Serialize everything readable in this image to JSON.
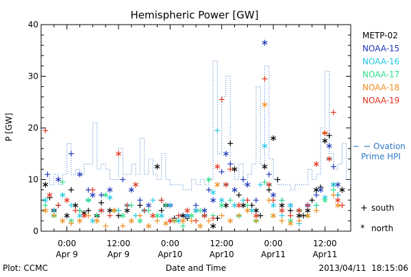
{
  "chart_data": {
    "type": "scatter",
    "title": "Hemispheric Power [GW]",
    "xlabel": "Date and Time",
    "ylabel": "P [GW]",
    "ylim": [
      0,
      40
    ],
    "y_ticks": [
      "0",
      "10",
      "20",
      "30",
      "40"
    ],
    "xlim_hours": [
      -6,
      66
    ],
    "x_ticks": [
      {
        "hour": 0,
        "time": "0:00",
        "date": "Apr 9"
      },
      {
        "hour": 12,
        "time": "12:00",
        "date": "Apr 9"
      },
      {
        "hour": 24,
        "time": "0:00",
        "date": "Apr10"
      },
      {
        "hour": 36,
        "time": "12:00",
        "date": "Apr10"
      },
      {
        "hour": 48,
        "time": "0:00",
        "date": "Apr11"
      },
      {
        "hour": 60,
        "time": "12:00",
        "date": "Apr11"
      }
    ],
    "grid": false,
    "legend_position": "right",
    "series": [
      {
        "name": "METP-02",
        "color": "#000000",
        "points": [
          [
            -5,
            9
          ],
          [
            -4,
            6.5
          ],
          [
            -3,
            4
          ],
          [
            -2,
            5
          ],
          [
            0,
            3
          ],
          [
            1,
            8
          ],
          [
            2,
            5
          ],
          [
            3,
            4
          ],
          [
            4,
            3.5
          ],
          [
            5,
            4
          ],
          [
            7,
            3
          ],
          [
            8,
            5.5
          ],
          [
            10,
            4
          ],
          [
            12,
            3
          ],
          [
            14,
            4
          ],
          [
            17,
            5
          ],
          [
            21,
            12.5
          ],
          [
            22,
            4
          ],
          [
            23,
            5
          ],
          [
            25,
            2.5
          ],
          [
            27,
            3
          ],
          [
            28,
            2.5
          ],
          [
            30,
            4
          ],
          [
            32,
            3
          ],
          [
            34,
            1
          ],
          [
            35,
            2.5
          ],
          [
            37,
            5
          ],
          [
            38,
            17
          ],
          [
            39,
            12
          ],
          [
            40,
            7
          ],
          [
            41,
            5
          ],
          [
            43,
            5
          ],
          [
            44,
            4
          ],
          [
            45,
            3
          ],
          [
            46,
            12.5
          ],
          [
            47,
            8
          ],
          [
            48,
            18
          ],
          [
            49,
            10
          ],
          [
            50,
            5
          ],
          [
            52,
            4
          ],
          [
            54,
            3
          ],
          [
            55,
            3
          ],
          [
            56,
            4
          ],
          [
            57,
            6
          ],
          [
            58,
            8
          ],
          [
            59,
            8.5
          ],
          [
            60,
            17.5
          ],
          [
            61,
            18.5
          ],
          [
            62,
            9
          ],
          [
            63,
            7
          ],
          [
            64,
            8
          ]
        ]
      },
      {
        "name": "NOAA-15",
        "color": "#1f37b8",
        "points": [
          [
            -4.5,
            11
          ],
          [
            -2,
            10
          ],
          [
            1,
            15
          ],
          [
            3,
            11
          ],
          [
            5,
            8
          ],
          [
            6,
            7
          ],
          [
            8,
            7
          ],
          [
            10,
            8
          ],
          [
            13,
            10
          ],
          [
            15,
            8
          ],
          [
            17,
            6
          ],
          [
            19,
            5
          ],
          [
            22,
            6
          ],
          [
            24,
            5
          ],
          [
            26,
            3
          ],
          [
            28,
            3
          ],
          [
            30,
            5
          ],
          [
            32,
            4
          ],
          [
            33,
            8
          ],
          [
            34,
            6
          ],
          [
            36,
            11.5
          ],
          [
            37,
            15
          ],
          [
            38,
            13
          ],
          [
            39,
            8
          ],
          [
            41,
            10
          ],
          [
            42,
            9
          ],
          [
            44,
            6
          ],
          [
            46,
            36.5
          ],
          [
            47,
            11
          ],
          [
            48,
            7
          ],
          [
            50,
            6
          ],
          [
            52,
            5
          ],
          [
            54,
            4
          ],
          [
            56,
            5
          ],
          [
            58,
            7
          ],
          [
            59,
            8
          ],
          [
            60,
            19
          ],
          [
            61,
            16.5
          ],
          [
            62,
            12.5
          ],
          [
            63,
            9
          ]
        ]
      },
      {
        "name": "NOAA-16",
        "color": "#22c8e6",
        "points": [
          [
            -5,
            6
          ],
          [
            -3,
            4
          ],
          [
            -1,
            7
          ],
          [
            1,
            5
          ],
          [
            3,
            3
          ],
          [
            5,
            6
          ],
          [
            6,
            2
          ],
          [
            8,
            4
          ],
          [
            10,
            6.5
          ],
          [
            12,
            4
          ],
          [
            14,
            5
          ],
          [
            16,
            3
          ],
          [
            18,
            4
          ],
          [
            20,
            6
          ],
          [
            22,
            3
          ],
          [
            24,
            5
          ],
          [
            26,
            2
          ],
          [
            28,
            3
          ],
          [
            30,
            4
          ],
          [
            32,
            3
          ],
          [
            34,
            7.5
          ],
          [
            35,
            19.5
          ],
          [
            36,
            6
          ],
          [
            37,
            9
          ],
          [
            39,
            5
          ],
          [
            41,
            6
          ],
          [
            43,
            4
          ],
          [
            45,
            9
          ],
          [
            46,
            16.5
          ],
          [
            47,
            9
          ],
          [
            48,
            5
          ],
          [
            50,
            3
          ],
          [
            52,
            5
          ],
          [
            54,
            1.5
          ],
          [
            56,
            3
          ],
          [
            58,
            5
          ],
          [
            60,
            6.5
          ],
          [
            61,
            14
          ],
          [
            62,
            9
          ],
          [
            63,
            7
          ]
        ]
      },
      {
        "name": "NOAA-17",
        "color": "#2ee08a",
        "points": [
          [
            -5,
            5
          ],
          [
            -3,
            3
          ],
          [
            -1,
            9.5
          ],
          [
            1,
            2
          ],
          [
            3,
            4
          ],
          [
            5,
            6
          ],
          [
            7,
            3
          ],
          [
            9,
            7
          ],
          [
            11,
            4
          ],
          [
            13,
            3
          ],
          [
            15,
            5
          ],
          [
            17,
            2
          ],
          [
            19,
            4
          ],
          [
            21,
            3
          ],
          [
            23,
            5
          ],
          [
            25,
            2
          ],
          [
            27,
            1
          ],
          [
            29,
            3
          ],
          [
            31,
            4
          ],
          [
            33,
            10
          ],
          [
            34,
            3
          ],
          [
            36,
            5
          ],
          [
            38,
            6
          ],
          [
            40,
            3
          ],
          [
            42,
            5
          ],
          [
            44,
            2
          ],
          [
            46,
            9.5
          ],
          [
            48,
            3
          ],
          [
            50,
            6
          ],
          [
            52,
            2
          ],
          [
            54,
            4
          ],
          [
            56,
            3
          ],
          [
            58,
            5
          ],
          [
            60,
            6
          ],
          [
            62,
            8
          ]
        ]
      },
      {
        "name": "NOAA-18",
        "color": "#f08c1c",
        "points": [
          [
            -5,
            4
          ],
          [
            -3,
            3
          ],
          [
            -1,
            2
          ],
          [
            1,
            1.5
          ],
          [
            3,
            2
          ],
          [
            5,
            3
          ],
          [
            7,
            2
          ],
          [
            9,
            1
          ],
          [
            11,
            4
          ],
          [
            13,
            1
          ],
          [
            15,
            2
          ],
          [
            17,
            3
          ],
          [
            19,
            1
          ],
          [
            21,
            2
          ],
          [
            23,
            1.5
          ],
          [
            25,
            2
          ],
          [
            27,
            2
          ],
          [
            29,
            2
          ],
          [
            31,
            1
          ],
          [
            33,
            2
          ],
          [
            35,
            9
          ],
          [
            36,
            3
          ],
          [
            38,
            2
          ],
          [
            40,
            3
          ],
          [
            42,
            4
          ],
          [
            44,
            2
          ],
          [
            46,
            24.5
          ],
          [
            47,
            6
          ],
          [
            48,
            3
          ],
          [
            50,
            2
          ],
          [
            52,
            1.5
          ],
          [
            54,
            2
          ],
          [
            56,
            3
          ],
          [
            58,
            4
          ],
          [
            60,
            19
          ],
          [
            62,
            7
          ],
          [
            63,
            5
          ]
        ]
      },
      {
        "name": "NOAA-19",
        "color": "#e2321e",
        "points": [
          [
            -5,
            19.5
          ],
          [
            -4,
            7
          ],
          [
            -2,
            5
          ],
          [
            0,
            6
          ],
          [
            2,
            4
          ],
          [
            4,
            3
          ],
          [
            6,
            8
          ],
          [
            8,
            4
          ],
          [
            10,
            3
          ],
          [
            12,
            15
          ],
          [
            14,
            5
          ],
          [
            16,
            9
          ],
          [
            18,
            4
          ],
          [
            20,
            3
          ],
          [
            22,
            6
          ],
          [
            24,
            2
          ],
          [
            26,
            3
          ],
          [
            28,
            4
          ],
          [
            30,
            2
          ],
          [
            32,
            3
          ],
          [
            34,
            2.5
          ],
          [
            35,
            12.5
          ],
          [
            36,
            25.5
          ],
          [
            37,
            9
          ],
          [
            38,
            12
          ],
          [
            40,
            5
          ],
          [
            42,
            6
          ],
          [
            44,
            3
          ],
          [
            46,
            29.5
          ],
          [
            47,
            9
          ],
          [
            48,
            6
          ],
          [
            50,
            4
          ],
          [
            52,
            3
          ],
          [
            54,
            4
          ],
          [
            56,
            5
          ],
          [
            58,
            13
          ],
          [
            60,
            19
          ],
          [
            61,
            14
          ],
          [
            62,
            23
          ],
          [
            63,
            6
          ],
          [
            64,
            5
          ]
        ]
      }
    ],
    "ovation": {
      "name": "Ovation Prime HPI",
      "color": "#2f78c8",
      "steps": [
        [
          -6,
          11
        ],
        [
          -5,
          11
        ],
        [
          -4,
          9
        ],
        [
          -3,
          11
        ],
        [
          -2,
          9
        ],
        [
          -1,
          11
        ],
        [
          0,
          17
        ],
        [
          1,
          11
        ],
        [
          2,
          12
        ],
        [
          3,
          11
        ],
        [
          4,
          13
        ],
        [
          5,
          13
        ],
        [
          6,
          21
        ],
        [
          7,
          12
        ],
        [
          8,
          13
        ],
        [
          9,
          12
        ],
        [
          10,
          10
        ],
        [
          11,
          10
        ],
        [
          12,
          16
        ],
        [
          13,
          11
        ],
        [
          14,
          11
        ],
        [
          15,
          13
        ],
        [
          16,
          11
        ],
        [
          17,
          18
        ],
        [
          18,
          11
        ],
        [
          19,
          14
        ],
        [
          20,
          11
        ],
        [
          21,
          10
        ],
        [
          22,
          15
        ],
        [
          23,
          10
        ],
        [
          24,
          9
        ],
        [
          25,
          9
        ],
        [
          26,
          9
        ],
        [
          27,
          8
        ],
        [
          28,
          8
        ],
        [
          29,
          10
        ],
        [
          30,
          9
        ],
        [
          31,
          10
        ],
        [
          32,
          9
        ],
        [
          33,
          10
        ],
        [
          34,
          33
        ],
        [
          35,
          15
        ],
        [
          36,
          26
        ],
        [
          37,
          30
        ],
        [
          38,
          13
        ],
        [
          39,
          10
        ],
        [
          40,
          13
        ],
        [
          41,
          9
        ],
        [
          42,
          11
        ],
        [
          43,
          13
        ],
        [
          44,
          28
        ],
        [
          45,
          13
        ],
        [
          46,
          32
        ],
        [
          47,
          14
        ],
        [
          48,
          10
        ],
        [
          49,
          9
        ],
        [
          50,
          9
        ],
        [
          51,
          9
        ],
        [
          52,
          8
        ],
        [
          53,
          9
        ],
        [
          54,
          9
        ],
        [
          55,
          9
        ],
        [
          56,
          12
        ],
        [
          57,
          10
        ],
        [
          58,
          11
        ],
        [
          59,
          20
        ],
        [
          60,
          31
        ],
        [
          61,
          15
        ],
        [
          62,
          12
        ],
        [
          63,
          13
        ],
        [
          64,
          17
        ],
        [
          65,
          10
        ],
        [
          66,
          9
        ]
      ]
    },
    "markers_legend": [
      {
        "symbol": "+",
        "label": "south"
      },
      {
        "symbol": "*",
        "label": "north"
      }
    ]
  },
  "footer": {
    "left": "Plot: CCMC",
    "right": "2013/04/11  18:15:06"
  }
}
